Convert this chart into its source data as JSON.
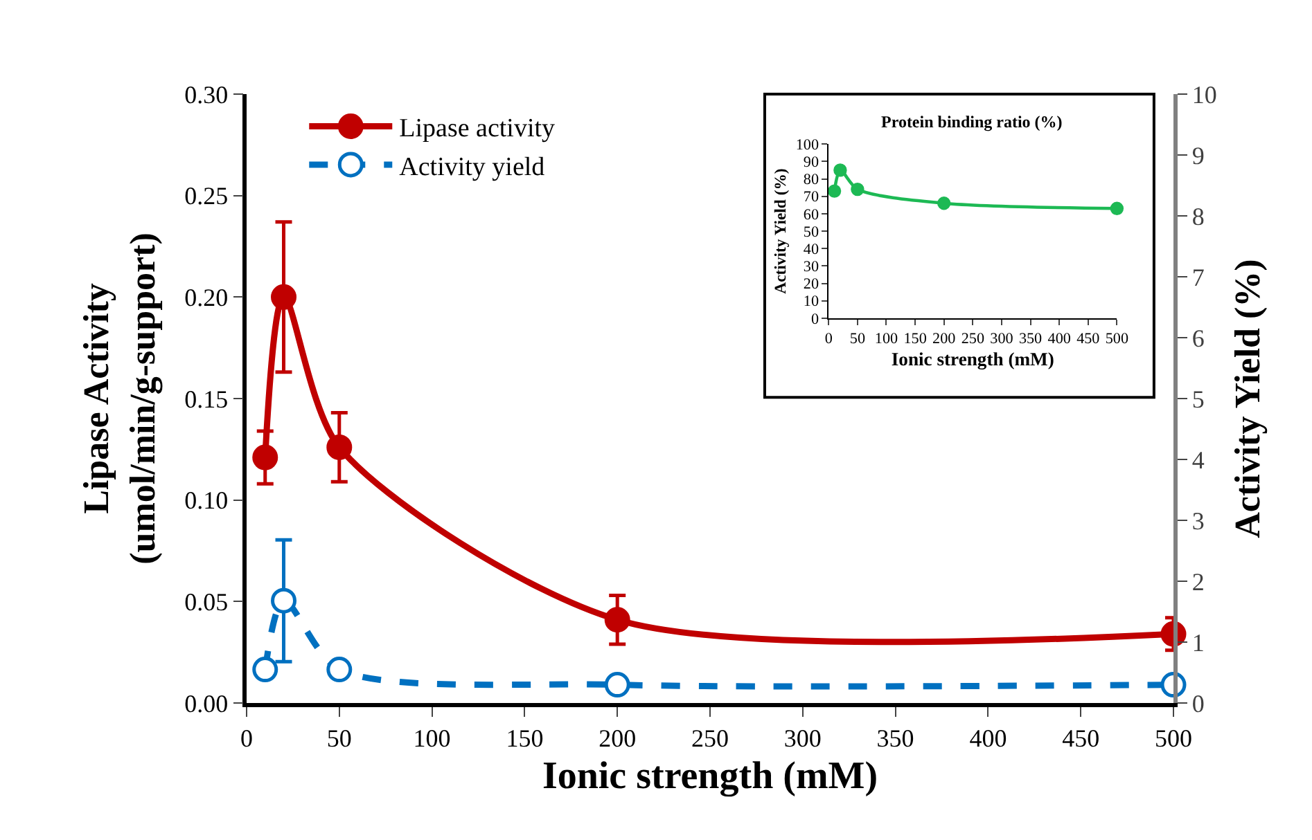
{
  "chart_data": [
    {
      "type": "line",
      "xlabel": "Ionic strength (mM)",
      "ylabel": "Lipase Activity\n(umol/min/g-support)",
      "y2label": "Activity Yield (%)",
      "x": [
        10,
        20,
        50,
        200,
        500
      ],
      "series": [
        {
          "name": "Lipase activity",
          "color": "#c00000",
          "values": [
            0.121,
            0.2,
            0.126,
            0.041,
            0.034
          ],
          "errors": [
            0.013,
            0.037,
            0.017,
            0.012,
            0.008
          ],
          "line_style": "solid",
          "marker": "circle"
        },
        {
          "name": "Activity yield",
          "color": "#0070c0",
          "values": [
            0.55,
            1.68,
            0.55,
            0.3,
            0.3
          ],
          "errors": [
            null,
            1.0,
            null,
            null,
            null
          ],
          "line_style": "dashed",
          "marker": "circle",
          "axis": "y2"
        }
      ],
      "xlim": [
        0,
        500
      ],
      "xticks": [
        0,
        50,
        100,
        150,
        200,
        250,
        300,
        350,
        400,
        450,
        500
      ],
      "ylim": [
        0,
        0.3
      ],
      "yticks": [
        {
          "value": 0,
          "label": "0.00"
        },
        {
          "value": 0.05,
          "label": "0.05"
        },
        {
          "value": 0.1,
          "label": "0.10"
        },
        {
          "value": 0.15,
          "label": "0.15"
        },
        {
          "value": 0.2,
          "label": "0.20"
        },
        {
          "value": 0.25,
          "label": "0.25"
        },
        {
          "value": 0.3,
          "label": "0.30"
        }
      ],
      "y2lim": [
        0,
        10
      ],
      "y2ticks": [
        0,
        1,
        2,
        3,
        4,
        5,
        6,
        7,
        8,
        9,
        10
      ],
      "grid": false,
      "legend": "top left"
    },
    {
      "type": "line",
      "title": "Protein binding ratio (%)",
      "xlabel": "Ionic strength (mM)",
      "ylabel": "Activity Yield (%)",
      "x": [
        10,
        20,
        50,
        200,
        500
      ],
      "series": [
        {
          "color": "#1db954",
          "values": [
            73,
            85,
            74,
            66,
            63
          ],
          "line_style": "solid",
          "marker": "circle"
        }
      ],
      "xlim": [
        0,
        500
      ],
      "xticks": [
        0,
        50,
        100,
        150,
        200,
        250,
        300,
        350,
        400,
        450,
        500
      ],
      "ylim": [
        0,
        100
      ],
      "yticks": [
        0,
        10,
        20,
        30,
        40,
        50,
        60,
        70,
        80,
        90,
        100
      ],
      "grid": false,
      "legend": false
    }
  ]
}
